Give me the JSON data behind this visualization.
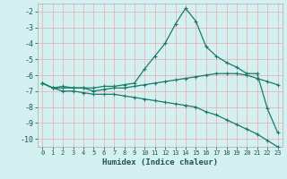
{
  "xlabel": "Humidex (Indice chaleur)",
  "bg_color": "#d5f0f0",
  "grid_color": "#e8b4b4",
  "line_color": "#1a7a6a",
  "x": [
    0,
    1,
    2,
    3,
    4,
    5,
    6,
    7,
    8,
    9,
    10,
    11,
    12,
    13,
    14,
    15,
    16,
    17,
    18,
    19,
    20,
    21,
    22,
    23
  ],
  "y_max": [
    -6.5,
    -6.8,
    -6.7,
    -6.8,
    -6.8,
    -6.8,
    -6.7,
    -6.7,
    -6.6,
    -6.5,
    -5.6,
    -4.8,
    -4.0,
    -2.8,
    -1.8,
    -2.6,
    -4.2,
    -4.8,
    -5.2,
    -5.5,
    -5.9,
    -5.9,
    -8.1,
    -9.6
  ],
  "y_mid": [
    -6.5,
    -6.8,
    -6.8,
    -6.8,
    -6.8,
    -7.0,
    -6.9,
    -6.8,
    -6.8,
    -6.7,
    -6.6,
    -6.5,
    -6.4,
    -6.3,
    -6.2,
    -6.1,
    -6.0,
    -5.9,
    -5.9,
    -5.9,
    -6.0,
    -6.2,
    -6.4,
    -6.6
  ],
  "y_min": [
    -6.5,
    -6.8,
    -7.0,
    -7.0,
    -7.1,
    -7.2,
    -7.2,
    -7.2,
    -7.3,
    -7.4,
    -7.5,
    -7.6,
    -7.7,
    -7.8,
    -7.9,
    -8.0,
    -8.3,
    -8.5,
    -8.8,
    -9.1,
    -9.4,
    -9.7,
    -10.1,
    -10.5
  ],
  "ylim": [
    -10.5,
    -1.5
  ],
  "xlim": [
    -0.5,
    23.5
  ],
  "yticks": [
    -10,
    -9,
    -8,
    -7,
    -6,
    -5,
    -4,
    -3,
    -2
  ],
  "xticks": [
    0,
    1,
    2,
    3,
    4,
    5,
    6,
    7,
    8,
    9,
    10,
    11,
    12,
    13,
    14,
    15,
    16,
    17,
    18,
    19,
    20,
    21,
    22,
    23
  ]
}
